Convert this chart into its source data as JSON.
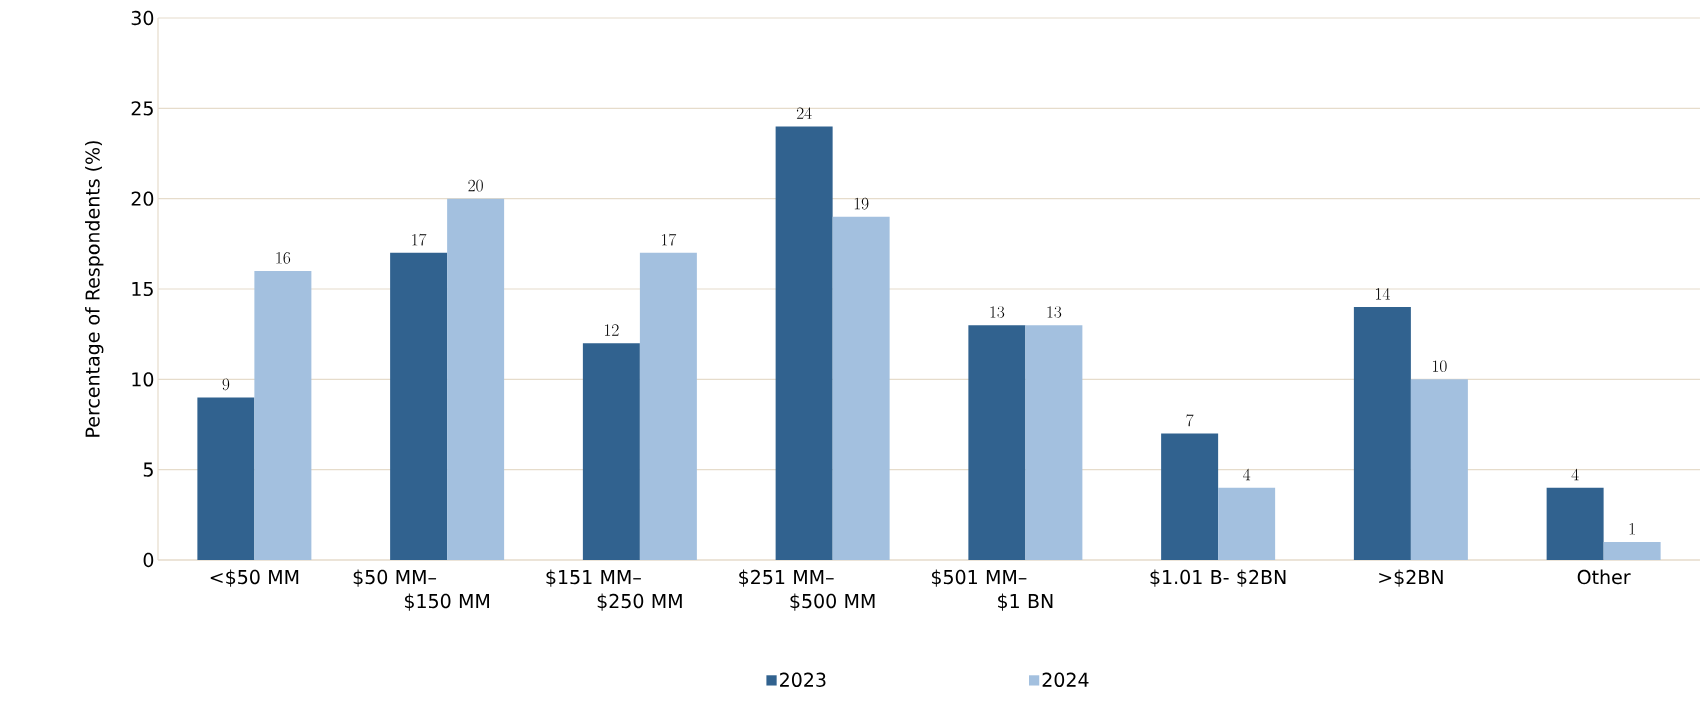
{
  "chart_data": {
    "type": "bar",
    "ylabel": "Percentage of Respondents (%)",
    "categories": [
      "<$50 MM",
      "$50 MM– $150 MM",
      "$151 MM– $250 MM",
      "$251 MM– $500 MM",
      "$501 MM– $1 BN",
      "$1.01 B- $2BN",
      ">$2BN",
      "Other"
    ],
    "series": [
      {
        "name": "2023",
        "color": "#31628f",
        "values": [
          9,
          17,
          12,
          24,
          13,
          7,
          14,
          4
        ]
      },
      {
        "name": "2024",
        "color": "#a3c0df",
        "values": [
          16,
          20,
          17,
          19,
          13,
          4,
          10,
          1
        ]
      }
    ],
    "ylim": [
      0,
      30
    ],
    "yticks": [
      0,
      5,
      10,
      15,
      20,
      25,
      30
    ],
    "grid": "y",
    "legend": "bottom",
    "data_labels": true
  }
}
